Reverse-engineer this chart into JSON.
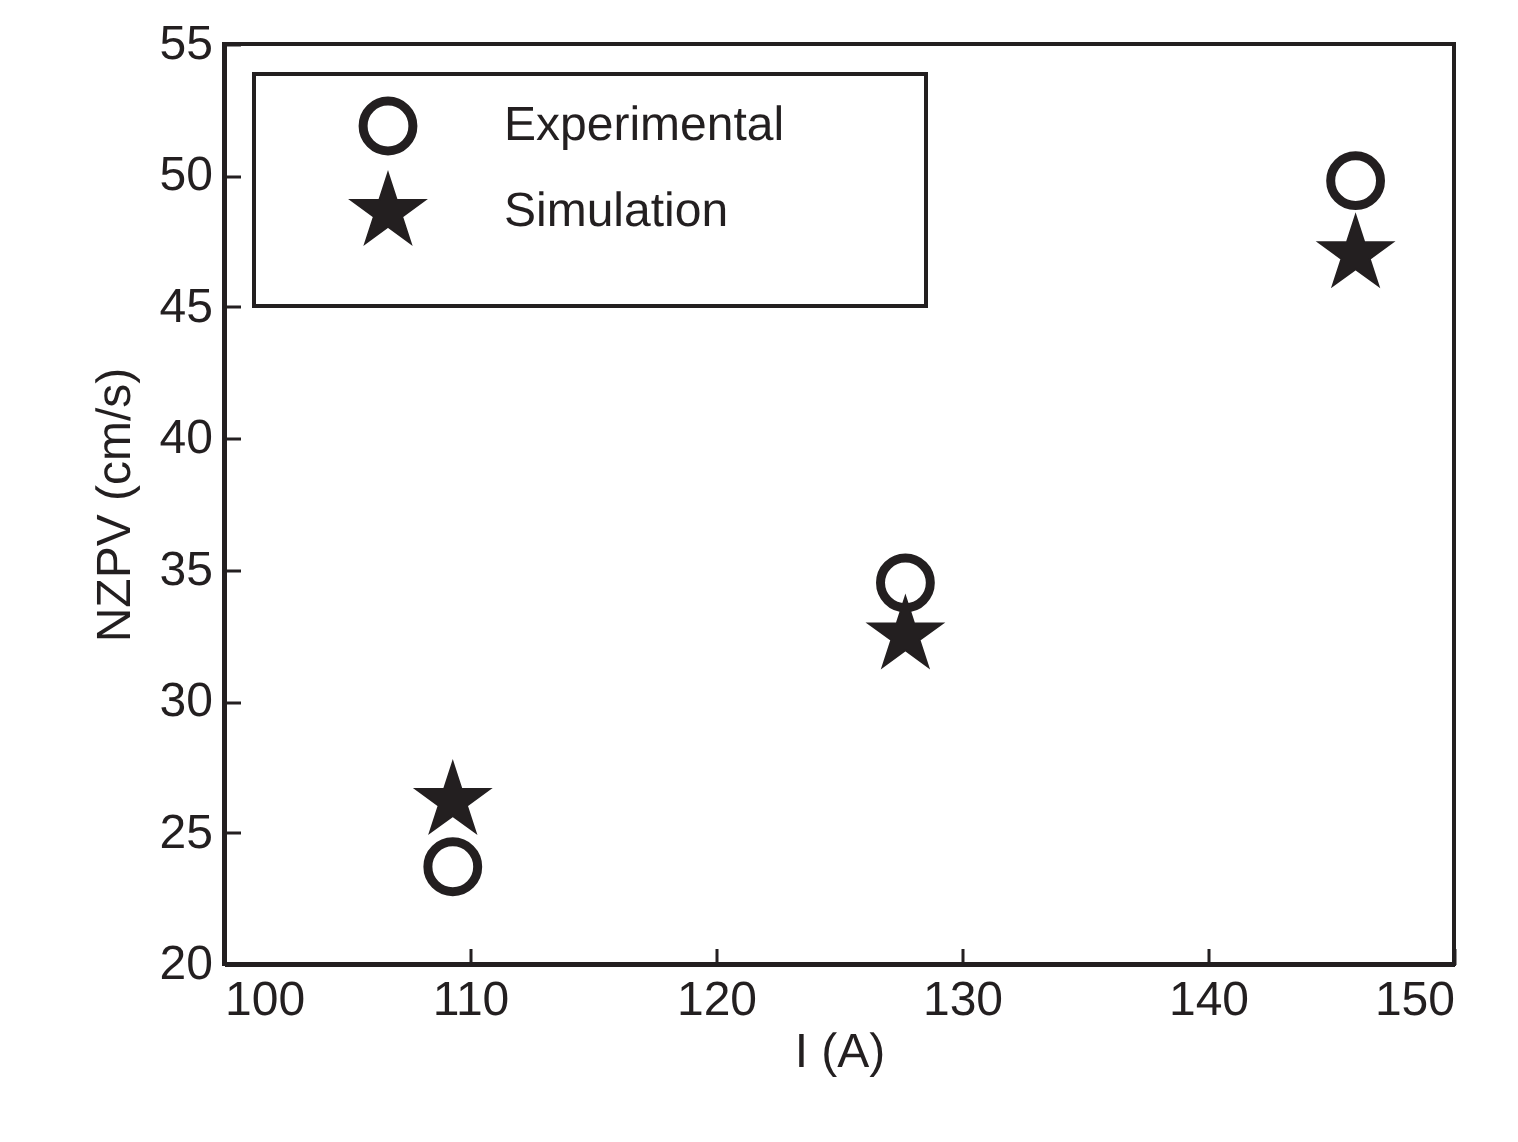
{
  "chart_data": {
    "type": "scatter",
    "xlabel": "I (A)",
    "ylabel": "NZPV (cm/s)",
    "x": [
      109.3,
      127.7,
      146.0
    ],
    "xlim": [
      100,
      150
    ],
    "xticks": [
      100,
      110,
      120,
      130,
      140,
      150
    ],
    "ylim": [
      20,
      55
    ],
    "yticks": [
      20,
      25,
      30,
      35,
      40,
      45,
      50,
      55
    ],
    "legend": "top left",
    "series": [
      {
        "name": "Experimental",
        "color": "#231f20",
        "marker": "circle",
        "values": [
          23.7,
          34.5,
          49.8
        ]
      },
      {
        "name": "Simulation",
        "color": "#231f20",
        "marker": "star",
        "values": [
          26.2,
          32.5,
          47.0
        ]
      }
    ]
  }
}
